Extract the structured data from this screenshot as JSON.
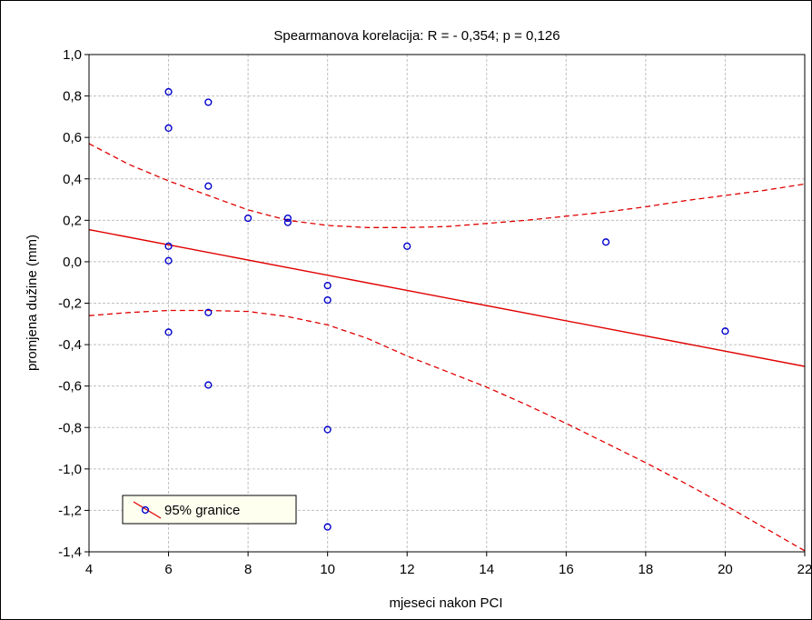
{
  "chart_data": {
    "type": "scatter",
    "title": "Spearmanova korelacija: R = - 0,354; p = 0,126",
    "xlabel": "mjeseci nakon PCI",
    "ylabel": "promjena dužine (mm)",
    "xlim": [
      4,
      22
    ],
    "ylim": [
      -1.4,
      1.0
    ],
    "x_ticks": [
      4,
      6,
      8,
      10,
      12,
      14,
      16,
      18,
      20,
      22
    ],
    "x_tick_labels": [
      "4",
      "6",
      "8",
      "10",
      "12",
      "14",
      "16",
      "18",
      "20",
      "22"
    ],
    "y_ticks": [
      1.0,
      0.8,
      0.6,
      0.4,
      0.2,
      0.0,
      -0.2,
      -0.4,
      -0.6,
      -0.8,
      -1.0,
      -1.2,
      -1.4
    ],
    "y_tick_labels": [
      "1,0",
      "0,8",
      "0,6",
      "0,4",
      "0,2",
      "0,0",
      "-0,2",
      "-0,4",
      "-0,6",
      "-0,8",
      "-1,0",
      "-1,2",
      "-1,4"
    ],
    "grid": true,
    "points": [
      {
        "x": 6,
        "y": 0.82
      },
      {
        "x": 6,
        "y": 0.645
      },
      {
        "x": 6,
        "y": 0.075
      },
      {
        "x": 6,
        "y": 0.005
      },
      {
        "x": 6,
        "y": -0.34
      },
      {
        "x": 7,
        "y": 0.77
      },
      {
        "x": 7,
        "y": 0.365
      },
      {
        "x": 7,
        "y": -0.245
      },
      {
        "x": 7,
        "y": -0.595
      },
      {
        "x": 8,
        "y": 0.21
      },
      {
        "x": 9,
        "y": 0.21
      },
      {
        "x": 9,
        "y": 0.19
      },
      {
        "x": 10,
        "y": -0.115
      },
      {
        "x": 10,
        "y": -0.185
      },
      {
        "x": 10,
        "y": -0.81
      },
      {
        "x": 10,
        "y": -1.28
      },
      {
        "x": 12,
        "y": 0.075
      },
      {
        "x": 17,
        "y": 0.095
      },
      {
        "x": 20,
        "y": -0.335
      }
    ],
    "regression_line": {
      "x": [
        4,
        22
      ],
      "y": [
        0.155,
        -0.505
      ]
    },
    "ci_upper": {
      "x": [
        4,
        5,
        6,
        7,
        8,
        9,
        10,
        11,
        12,
        13,
        14,
        15,
        16,
        17,
        18,
        19,
        20,
        21,
        22
      ],
      "y": [
        0.57,
        0.47,
        0.39,
        0.32,
        0.25,
        0.2,
        0.175,
        0.165,
        0.165,
        0.17,
        0.185,
        0.2,
        0.22,
        0.24,
        0.265,
        0.295,
        0.32,
        0.345,
        0.375
      ]
    },
    "ci_lower": {
      "x": [
        4,
        5,
        6,
        7,
        8,
        9,
        10,
        11,
        12,
        13,
        14,
        15,
        16,
        17,
        18,
        19,
        20,
        21,
        22
      ],
      "y": [
        -0.26,
        -0.245,
        -0.235,
        -0.235,
        -0.24,
        -0.265,
        -0.305,
        -0.37,
        -0.455,
        -0.53,
        -0.605,
        -0.69,
        -0.78,
        -0.875,
        -0.97,
        -1.07,
        -1.175,
        -1.285,
        -1.395
      ]
    },
    "legend": {
      "label": "95% granice",
      "position": "bottom-left"
    },
    "colors": {
      "points": "#0000cc",
      "line": "#e00000",
      "grid": "#c0c0c0",
      "legend_bg": "#fffff0"
    }
  }
}
